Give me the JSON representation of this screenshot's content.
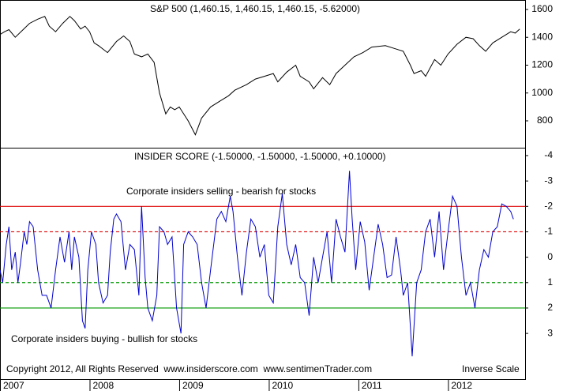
{
  "chart_data": [
    {
      "type": "line",
      "title": "S&P 500 (1,460.15, 1,460.15, 1,460.15, -5.62000)",
      "x": [
        2007.0,
        2007.05,
        2007.1,
        2007.17,
        2007.25,
        2007.33,
        2007.42,
        2007.5,
        2007.55,
        2007.62,
        2007.7,
        2007.78,
        2007.83,
        2007.9,
        2007.95,
        2008.0,
        2008.05,
        2008.1,
        2008.2,
        2008.3,
        2008.38,
        2008.45,
        2008.5,
        2008.58,
        2008.65,
        2008.72,
        2008.78,
        2008.85,
        2008.9,
        2008.95,
        2009.0,
        2009.1,
        2009.18,
        2009.25,
        2009.35,
        2009.45,
        2009.55,
        2009.62,
        2009.75,
        2009.85,
        2009.95,
        2010.05,
        2010.1,
        2010.2,
        2010.3,
        2010.35,
        2010.45,
        2010.5,
        2010.6,
        2010.68,
        2010.75,
        2010.85,
        2010.95,
        2011.05,
        2011.15,
        2011.3,
        2011.4,
        2011.5,
        2011.58,
        2011.62,
        2011.7,
        2011.75,
        2011.85,
        2011.92,
        2012.0,
        2012.1,
        2012.2,
        2012.28,
        2012.35,
        2012.42,
        2012.5,
        2012.6,
        2012.7,
        2012.75,
        2012.8
      ],
      "series": [
        {
          "color": "#000000",
          "values": [
            1420,
            1440,
            1455,
            1400,
            1450,
            1500,
            1530,
            1550,
            1480,
            1440,
            1500,
            1550,
            1520,
            1460,
            1480,
            1440,
            1360,
            1340,
            1290,
            1370,
            1410,
            1370,
            1280,
            1260,
            1280,
            1220,
            1000,
            850,
            900,
            880,
            900,
            800,
            700,
            820,
            900,
            940,
            980,
            1020,
            1060,
            1100,
            1120,
            1140,
            1080,
            1150,
            1200,
            1120,
            1080,
            1030,
            1110,
            1060,
            1140,
            1200,
            1260,
            1290,
            1330,
            1340,
            1320,
            1300,
            1200,
            1140,
            1160,
            1120,
            1240,
            1200,
            1280,
            1350,
            1400,
            1390,
            1340,
            1300,
            1360,
            1400,
            1440,
            1430,
            1460
          ]
        }
      ],
      "xlim": [
        2007,
        2012.86
      ],
      "ylim": [
        607,
        1668
      ],
      "yticks": [
        800,
        1000,
        1200,
        1400,
        1600
      ]
    },
    {
      "type": "line",
      "title": "INSIDER SCORE (-1.50000, -1.50000, -1.50000, +0.10000)",
      "x": [
        2007.0,
        2007.03,
        2007.07,
        2007.1,
        2007.13,
        2007.17,
        2007.2,
        2007.23,
        2007.27,
        2007.3,
        2007.33,
        2007.37,
        2007.42,
        2007.47,
        2007.52,
        2007.57,
        2007.62,
        2007.67,
        2007.72,
        2007.77,
        2007.8,
        2007.83,
        2007.88,
        2007.92,
        2007.95,
        2007.98,
        2008.02,
        2008.07,
        2008.1,
        2008.15,
        2008.2,
        2008.23,
        2008.27,
        2008.3,
        2008.35,
        2008.4,
        2008.45,
        2008.5,
        2008.55,
        2008.58,
        2008.62,
        2008.65,
        2008.7,
        2008.75,
        2008.78,
        2008.83,
        2008.87,
        2008.92,
        2008.97,
        2009.02,
        2009.05,
        2009.1,
        2009.15,
        2009.2,
        2009.25,
        2009.3,
        2009.35,
        2009.42,
        2009.47,
        2009.52,
        2009.57,
        2009.6,
        2009.65,
        2009.7,
        2009.75,
        2009.8,
        2009.85,
        2009.9,
        2009.95,
        2010.0,
        2010.05,
        2010.1,
        2010.15,
        2010.2,
        2010.25,
        2010.3,
        2010.35,
        2010.4,
        2010.45,
        2010.5,
        2010.55,
        2010.6,
        2010.65,
        2010.7,
        2010.75,
        2010.8,
        2010.85,
        2010.9,
        2010.93,
        2010.97,
        2011.02,
        2011.07,
        2011.12,
        2011.17,
        2011.22,
        2011.27,
        2011.32,
        2011.37,
        2011.42,
        2011.47,
        2011.5,
        2011.55,
        2011.6,
        2011.65,
        2011.7,
        2011.75,
        2011.8,
        2011.85,
        2011.9,
        2011.95,
        2012.0,
        2012.05,
        2012.1,
        2012.15,
        2012.2,
        2012.25,
        2012.3,
        2012.35,
        2012.4,
        2012.45,
        2012.5,
        2012.55,
        2012.6,
        2012.65,
        2012.7,
        2012.73
      ],
      "series": [
        {
          "color": "#0000cc",
          "values": [
            0.5,
            1.0,
            -0.5,
            -1.2,
            0.5,
            -0.2,
            1.0,
            0.2,
            -1.0,
            -0.5,
            -1.4,
            -1.2,
            0.5,
            1.5,
            1.5,
            2.0,
            0.5,
            -0.8,
            0.2,
            -1.0,
            0.5,
            -0.8,
            0.0,
            2.5,
            2.8,
            0.5,
            -1.0,
            -0.5,
            1.0,
            1.8,
            1.5,
            -0.2,
            -1.5,
            -1.7,
            -1.4,
            0.5,
            -0.5,
            -0.3,
            1.5,
            -2.0,
            0.8,
            2.0,
            2.5,
            1.5,
            -1.2,
            -1.0,
            -0.5,
            -0.8,
            2.0,
            3.0,
            -0.5,
            -1.0,
            -0.8,
            -0.5,
            1.0,
            2.0,
            0.5,
            -1.5,
            -1.8,
            -1.4,
            -2.4,
            -1.8,
            0.0,
            1.5,
            -0.2,
            -1.5,
            -1.2,
            0.0,
            -0.5,
            1.5,
            1.8,
            -1.2,
            -2.5,
            -0.5,
            0.3,
            -0.5,
            0.8,
            1.0,
            2.3,
            0.0,
            1.0,
            0.0,
            -1.0,
            1.0,
            -1.5,
            -0.8,
            -0.2,
            -3.4,
            -1.5,
            0.5,
            -1.4,
            -0.6,
            1.3,
            0.0,
            -1.3,
            -0.5,
            0.8,
            0.7,
            -0.8,
            0.5,
            1.5,
            1.0,
            3.9,
            1.0,
            0.5,
            -1.0,
            -1.5,
            0.0,
            -1.8,
            0.5,
            -1.0,
            -2.4,
            -2.0,
            0.0,
            1.5,
            1.0,
            2.0,
            0.5,
            -0.3,
            0.0,
            -1.0,
            -1.2,
            -2.1,
            -2.0,
            -1.8,
            -1.5
          ]
        }
      ],
      "xlim": [
        2007,
        2012.86
      ],
      "ylim": [
        -4.31,
        4.8
      ],
      "inverted": true,
      "yticks": [
        -4,
        -3,
        -2,
        -1,
        0,
        1,
        2,
        3
      ],
      "xticks": [
        2007,
        2008,
        2009,
        2010,
        2011,
        2012
      ],
      "reference_lines": [
        {
          "value": -2,
          "color": "#dd0000",
          "dashed": false
        },
        {
          "value": -1,
          "color": "#dd0000",
          "dashed": true
        },
        {
          "value": 1,
          "color": "#009900",
          "dashed": true
        },
        {
          "value": 2,
          "color": "#009900",
          "dashed": false
        }
      ],
      "annotations": [
        {
          "text": "Corporate insiders selling - bearish for stocks",
          "color": "#dd0000"
        },
        {
          "text": "Corporate insiders buying - bullish for stocks",
          "color": "#009900"
        }
      ],
      "footer": "Copyright 2012, All Rights Reserved  www.insiderscore.com  www.sentimenTrader.com",
      "scale_note": "Inverse Scale"
    }
  ]
}
